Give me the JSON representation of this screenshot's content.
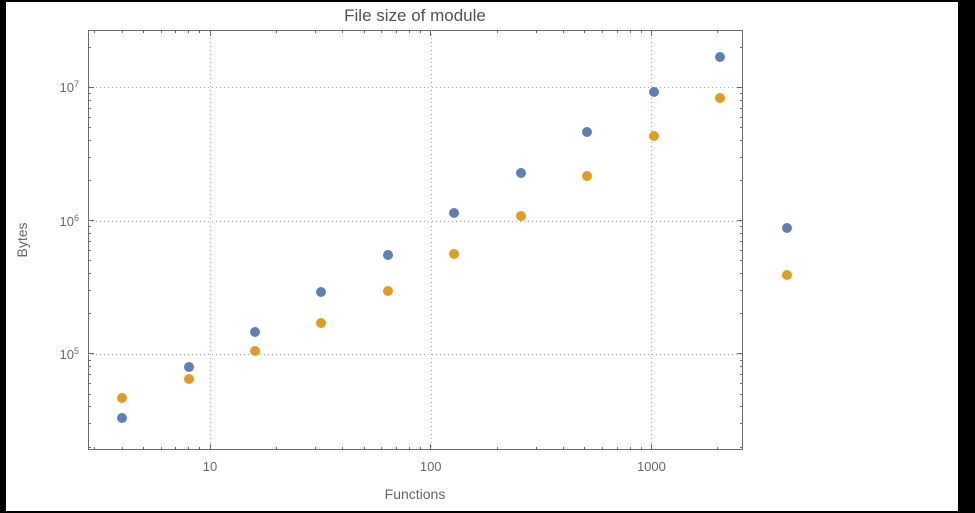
{
  "canvas": {
    "page_background": "#000000",
    "plot_background": "#ffffff"
  },
  "chart_data": {
    "type": "scatter",
    "title": "File size of module",
    "xlabel": "Functions",
    "ylabel": "Bytes",
    "x_scale": "log",
    "y_scale": "log",
    "x_range": [
      2.8,
      2600
    ],
    "y_range": [
      19000,
      27000000
    ],
    "x_ticks": [
      10,
      100,
      1000
    ],
    "x_tick_labels": [
      "10",
      "100",
      "1000"
    ],
    "y_ticks": [
      100000,
      1000000,
      10000000
    ],
    "y_tick_labels": [
      {
        "base": "10",
        "exp": "5"
      },
      {
        "base": "10",
        "exp": "6"
      },
      {
        "base": "10",
        "exp": "7"
      }
    ],
    "grid": "dotted",
    "legend": "none",
    "frame_color": "#6b6b6b",
    "grid_color": "#a8a8a8",
    "text_color": "#696969",
    "series": [
      {
        "name": "series-blue",
        "color": "#5E81B5",
        "points": [
          [
            4,
            33000
          ],
          [
            8,
            80000
          ],
          [
            16,
            145000
          ],
          [
            32,
            290000
          ],
          [
            64,
            550000
          ],
          [
            128,
            1150000
          ],
          [
            256,
            2300000
          ],
          [
            512,
            4600000
          ],
          [
            1024,
            9200000
          ],
          [
            2048,
            17000000
          ],
          [
            4096,
            880000
          ]
        ]
      },
      {
        "name": "series-orange",
        "color": "#E19C24",
        "points": [
          [
            4,
            47000
          ],
          [
            8,
            65000
          ],
          [
            16,
            105000
          ],
          [
            32,
            170000
          ],
          [
            64,
            295000
          ],
          [
            128,
            560000
          ],
          [
            256,
            1080000
          ],
          [
            512,
            2150000
          ],
          [
            1024,
            4300000
          ],
          [
            2048,
            8300000
          ],
          [
            4096,
            390000
          ]
        ]
      }
    ]
  }
}
